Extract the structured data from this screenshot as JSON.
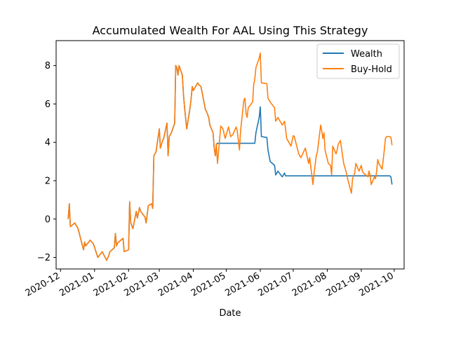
{
  "chart_data": {
    "type": "line",
    "title": "Accumulated Wealth For AAL Using This Strategy",
    "xlabel": "Date",
    "ylabel": "",
    "x_axis": {
      "ticks": [
        "2020-12",
        "2021-01",
        "2021-02",
        "2021-03",
        "2021-04",
        "2021-05",
        "2021-06",
        "2021-07",
        "2021-08",
        "2021-09",
        "2021-10"
      ],
      "range": [
        "2020-11-27",
        "2021-10-10"
      ]
    },
    "y_axis": {
      "ticks": [
        "−2",
        "0",
        "2",
        "4",
        "6",
        "8"
      ],
      "tick_values": [
        -2,
        0,
        2,
        4,
        6,
        8
      ],
      "ylim": [
        -2.6,
        9.3
      ]
    },
    "grid": false,
    "legend": {
      "position": "upper right",
      "entries": [
        "Wealth",
        "Buy-Hold"
      ]
    },
    "series": [
      {
        "name": "Wealth",
        "color": "#1f77b4",
        "points": [
          [
            "2020-12-08",
            0.0
          ],
          [
            "2020-12-09",
            0.8
          ],
          [
            "2020-12-10",
            -0.4
          ],
          [
            "2020-12-14",
            -0.2
          ],
          [
            "2020-12-17",
            -0.5
          ],
          [
            "2020-12-21",
            -1.4
          ],
          [
            "2020-12-22",
            -1.6
          ],
          [
            "2020-12-23",
            -1.2
          ],
          [
            "2020-12-24",
            -1.4
          ],
          [
            "2020-12-28",
            -1.1
          ],
          [
            "2020-12-31",
            -1.3
          ],
          [
            "2021-01-04",
            -2.0
          ],
          [
            "2021-01-08",
            -1.7
          ],
          [
            "2021-01-12",
            -2.15
          ],
          [
            "2021-01-14",
            -1.9
          ],
          [
            "2021-01-15",
            -1.7
          ],
          [
            "2021-01-19",
            -1.5
          ],
          [
            "2021-01-20",
            -0.75
          ],
          [
            "2021-01-21",
            -1.4
          ],
          [
            "2021-01-22",
            -1.25
          ],
          [
            "2021-01-25",
            -1.1
          ],
          [
            "2021-01-27",
            -1.0
          ],
          [
            "2021-01-28",
            -1.7
          ],
          [
            "2021-02-01",
            -1.6
          ],
          [
            "2021-02-02",
            0.9
          ],
          [
            "2021-02-03",
            -0.2
          ],
          [
            "2021-02-05",
            -0.5
          ],
          [
            "2021-02-08",
            0.4
          ],
          [
            "2021-02-09",
            0.05
          ],
          [
            "2021-02-11",
            0.6
          ],
          [
            "2021-02-12",
            0.4
          ],
          [
            "2021-02-16",
            0.1
          ],
          [
            "2021-02-17",
            -0.2
          ],
          [
            "2021-02-19",
            0.7
          ],
          [
            "2021-02-22",
            0.8
          ],
          [
            "2021-02-23",
            0.55
          ],
          [
            "2021-02-24",
            3.3
          ],
          [
            "2021-02-26",
            3.5
          ],
          [
            "2021-03-01",
            4.7
          ],
          [
            "2021-03-02",
            3.7
          ],
          [
            "2021-03-04",
            4.1
          ],
          [
            "2021-03-05",
            4.2
          ],
          [
            "2021-03-08",
            5.0
          ],
          [
            "2021-03-09",
            3.3
          ],
          [
            "2021-03-10",
            4.3
          ],
          [
            "2021-03-12",
            4.5
          ],
          [
            "2021-03-15",
            5.0
          ],
          [
            "2021-03-16",
            8.0
          ],
          [
            "2021-03-17",
            7.9
          ],
          [
            "2021-03-18",
            7.5
          ],
          [
            "2021-03-19",
            8.0
          ],
          [
            "2021-03-22",
            7.5
          ],
          [
            "2021-03-23",
            6.5
          ],
          [
            "2021-03-24",
            5.8
          ],
          [
            "2021-03-26",
            4.7
          ],
          [
            "2021-03-29",
            5.8
          ],
          [
            "2021-03-30",
            6.3
          ],
          [
            "2021-03-31",
            6.9
          ],
          [
            "2021-04-01",
            6.7
          ],
          [
            "2021-04-05",
            7.1
          ],
          [
            "2021-04-06",
            7.0
          ],
          [
            "2021-04-08",
            6.9
          ],
          [
            "2021-04-09",
            6.6
          ],
          [
            "2021-04-12",
            5.7
          ],
          [
            "2021-04-13",
            5.6
          ],
          [
            "2021-04-15",
            5.3
          ],
          [
            "2021-04-16",
            4.9
          ],
          [
            "2021-04-19",
            4.5
          ],
          [
            "2021-04-20",
            3.7
          ],
          [
            "2021-04-21",
            3.3
          ],
          [
            "2021-04-22",
            3.9
          ],
          [
            "2021-04-23",
            3.95
          ],
          [
            "2021-05-27",
            3.95
          ],
          [
            "2021-05-28",
            4.5
          ],
          [
            "2021-05-31",
            5.3
          ],
          [
            "2021-06-01",
            5.85
          ],
          [
            "2021-06-02",
            4.3
          ],
          [
            "2021-06-07",
            4.25
          ],
          [
            "2021-06-08",
            3.6
          ],
          [
            "2021-06-10",
            3.0
          ],
          [
            "2021-06-14",
            2.8
          ],
          [
            "2021-06-15",
            2.3
          ],
          [
            "2021-06-17",
            2.5
          ],
          [
            "2021-06-21",
            2.2
          ],
          [
            "2021-06-23",
            2.4
          ],
          [
            "2021-06-24",
            2.25
          ],
          [
            "2021-09-27",
            2.25
          ],
          [
            "2021-09-28",
            2.2
          ],
          [
            "2021-09-29",
            1.8
          ]
        ]
      },
      {
        "name": "Buy-Hold",
        "color": "#ff7f0e",
        "points": [
          [
            "2020-12-08",
            0.0
          ],
          [
            "2020-12-09",
            0.8
          ],
          [
            "2020-12-10",
            -0.4
          ],
          [
            "2020-12-14",
            -0.2
          ],
          [
            "2020-12-17",
            -0.5
          ],
          [
            "2020-12-21",
            -1.4
          ],
          [
            "2020-12-22",
            -1.6
          ],
          [
            "2020-12-23",
            -1.2
          ],
          [
            "2020-12-24",
            -1.4
          ],
          [
            "2020-12-28",
            -1.1
          ],
          [
            "2020-12-31",
            -1.3
          ],
          [
            "2021-01-04",
            -2.0
          ],
          [
            "2021-01-08",
            -1.7
          ],
          [
            "2021-01-12",
            -2.15
          ],
          [
            "2021-01-14",
            -1.9
          ],
          [
            "2021-01-15",
            -1.7
          ],
          [
            "2021-01-19",
            -1.5
          ],
          [
            "2021-01-20",
            -0.75
          ],
          [
            "2021-01-21",
            -1.4
          ],
          [
            "2021-01-22",
            -1.25
          ],
          [
            "2021-01-25",
            -1.1
          ],
          [
            "2021-01-27",
            -1.0
          ],
          [
            "2021-01-28",
            -1.7
          ],
          [
            "2021-02-01",
            -1.6
          ],
          [
            "2021-02-02",
            0.9
          ],
          [
            "2021-02-03",
            -0.2
          ],
          [
            "2021-02-05",
            -0.5
          ],
          [
            "2021-02-08",
            0.4
          ],
          [
            "2021-02-09",
            0.05
          ],
          [
            "2021-02-11",
            0.6
          ],
          [
            "2021-02-12",
            0.4
          ],
          [
            "2021-02-16",
            0.1
          ],
          [
            "2021-02-17",
            -0.2
          ],
          [
            "2021-02-19",
            0.7
          ],
          [
            "2021-02-22",
            0.8
          ],
          [
            "2021-02-23",
            0.55
          ],
          [
            "2021-02-24",
            3.3
          ],
          [
            "2021-02-26",
            3.5
          ],
          [
            "2021-03-01",
            4.7
          ],
          [
            "2021-03-02",
            3.7
          ],
          [
            "2021-03-04",
            4.1
          ],
          [
            "2021-03-05",
            4.2
          ],
          [
            "2021-03-08",
            5.0
          ],
          [
            "2021-03-09",
            3.3
          ],
          [
            "2021-03-10",
            4.3
          ],
          [
            "2021-03-12",
            4.5
          ],
          [
            "2021-03-15",
            5.0
          ],
          [
            "2021-03-16",
            8.0
          ],
          [
            "2021-03-17",
            7.9
          ],
          [
            "2021-03-18",
            7.5
          ],
          [
            "2021-03-19",
            8.0
          ],
          [
            "2021-03-22",
            7.5
          ],
          [
            "2021-03-23",
            6.5
          ],
          [
            "2021-03-24",
            5.8
          ],
          [
            "2021-03-26",
            4.7
          ],
          [
            "2021-03-29",
            5.8
          ],
          [
            "2021-03-30",
            6.3
          ],
          [
            "2021-03-31",
            6.9
          ],
          [
            "2021-04-01",
            6.7
          ],
          [
            "2021-04-05",
            7.1
          ],
          [
            "2021-04-06",
            7.0
          ],
          [
            "2021-04-08",
            6.9
          ],
          [
            "2021-04-09",
            6.6
          ],
          [
            "2021-04-12",
            5.7
          ],
          [
            "2021-04-13",
            5.6
          ],
          [
            "2021-04-15",
            5.3
          ],
          [
            "2021-04-16",
            4.9
          ],
          [
            "2021-04-19",
            4.5
          ],
          [
            "2021-04-20",
            3.7
          ],
          [
            "2021-04-21",
            3.3
          ],
          [
            "2021-04-22",
            3.9
          ],
          [
            "2021-04-23",
            2.9
          ],
          [
            "2021-04-26",
            4.85
          ],
          [
            "2021-04-28",
            4.7
          ],
          [
            "2021-04-30",
            4.2
          ],
          [
            "2021-05-03",
            4.8
          ],
          [
            "2021-05-05",
            4.3
          ],
          [
            "2021-05-07",
            4.4
          ],
          [
            "2021-05-10",
            4.8
          ],
          [
            "2021-05-11",
            4.6
          ],
          [
            "2021-05-13",
            3.6
          ],
          [
            "2021-05-14",
            4.6
          ],
          [
            "2021-05-17",
            6.2
          ],
          [
            "2021-05-18",
            6.3
          ],
          [
            "2021-05-19",
            5.5
          ],
          [
            "2021-05-20",
            5.3
          ],
          [
            "2021-05-21",
            5.8
          ],
          [
            "2021-05-25",
            6.1
          ],
          [
            "2021-05-26",
            7.0
          ],
          [
            "2021-05-27",
            7.3
          ],
          [
            "2021-05-28",
            7.9
          ],
          [
            "2021-05-31",
            8.4
          ],
          [
            "2021-06-01",
            8.65
          ],
          [
            "2021-06-02",
            7.1
          ],
          [
            "2021-06-07",
            7.05
          ],
          [
            "2021-06-08",
            6.3
          ],
          [
            "2021-06-10",
            6.1
          ],
          [
            "2021-06-14",
            5.8
          ],
          [
            "2021-06-15",
            5.1
          ],
          [
            "2021-06-17",
            5.3
          ],
          [
            "2021-06-21",
            4.9
          ],
          [
            "2021-06-23",
            5.1
          ],
          [
            "2021-06-24",
            4.7
          ],
          [
            "2021-06-25",
            4.2
          ],
          [
            "2021-06-29",
            3.8
          ],
          [
            "2021-07-01",
            4.35
          ],
          [
            "2021-07-02",
            4.3
          ],
          [
            "2021-07-06",
            3.4
          ],
          [
            "2021-07-08",
            3.2
          ],
          [
            "2021-07-12",
            3.7
          ],
          [
            "2021-07-15",
            2.9
          ],
          [
            "2021-07-16",
            3.2
          ],
          [
            "2021-07-19",
            1.8
          ],
          [
            "2021-07-20",
            2.4
          ],
          [
            "2021-07-22",
            3.3
          ],
          [
            "2021-07-23",
            3.5
          ],
          [
            "2021-07-26",
            4.9
          ],
          [
            "2021-07-27",
            4.6
          ],
          [
            "2021-07-28",
            4.2
          ],
          [
            "2021-07-29",
            4.5
          ],
          [
            "2021-07-30",
            3.6
          ],
          [
            "2021-08-02",
            2.9
          ],
          [
            "2021-08-04",
            2.8
          ],
          [
            "2021-08-05",
            2.3
          ],
          [
            "2021-08-06",
            3.8
          ],
          [
            "2021-08-09",
            3.4
          ],
          [
            "2021-08-10",
            3.6
          ],
          [
            "2021-08-11",
            3.9
          ],
          [
            "2021-08-13",
            4.1
          ],
          [
            "2021-08-16",
            2.9
          ],
          [
            "2021-08-18",
            2.5
          ],
          [
            "2021-08-20",
            2.0
          ],
          [
            "2021-08-23",
            1.35
          ],
          [
            "2021-08-24",
            2.1
          ],
          [
            "2021-08-26",
            2.4
          ],
          [
            "2021-08-27",
            2.9
          ],
          [
            "2021-08-30",
            2.5
          ],
          [
            "2021-09-01",
            2.8
          ],
          [
            "2021-09-02",
            2.5
          ],
          [
            "2021-09-03",
            2.4
          ],
          [
            "2021-09-07",
            2.2
          ],
          [
            "2021-09-08",
            2.5
          ],
          [
            "2021-09-09",
            2.3
          ],
          [
            "2021-09-10",
            1.8
          ],
          [
            "2021-09-13",
            2.2
          ],
          [
            "2021-09-14",
            2.1
          ],
          [
            "2021-09-15",
            2.5
          ],
          [
            "2021-09-16",
            3.1
          ],
          [
            "2021-09-17",
            2.9
          ],
          [
            "2021-09-20",
            2.6
          ],
          [
            "2021-09-22",
            3.6
          ],
          [
            "2021-09-23",
            4.2
          ],
          [
            "2021-09-24",
            4.3
          ],
          [
            "2021-09-27",
            4.3
          ],
          [
            "2021-09-28",
            4.25
          ],
          [
            "2021-09-29",
            3.85
          ]
        ]
      }
    ]
  }
}
